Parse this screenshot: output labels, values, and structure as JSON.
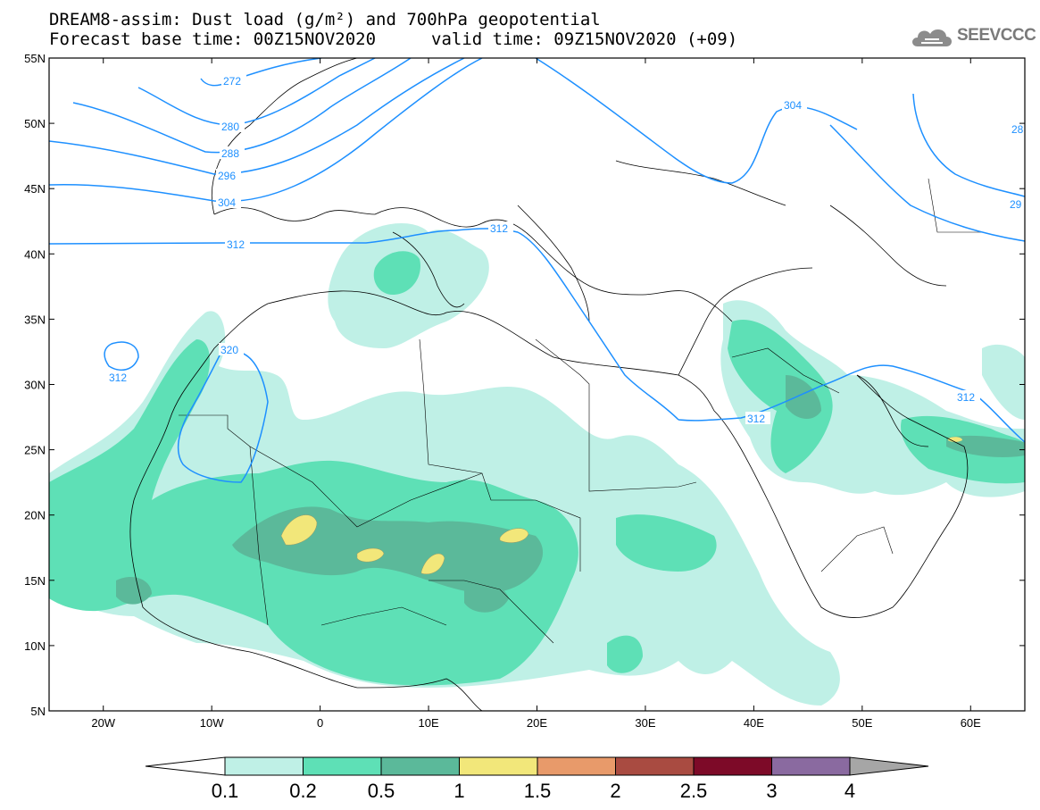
{
  "title": {
    "line1": "DREAM8-assim: Dust load (g/m²) and 700hPa geopotential",
    "line2": "Forecast base time: 00Z15NOV2020",
    "valid": "valid time: 09Z15NOV2020 (+09)"
  },
  "logo": {
    "text": "SEEVCCC",
    "icon": "cloud-icon"
  },
  "axes": {
    "lon_labels": [
      "20W",
      "10W",
      "0",
      "10E",
      "20E",
      "30E",
      "40E",
      "50E",
      "60E"
    ],
    "lat_labels": [
      "55N",
      "50N",
      "45N",
      "40N",
      "35N",
      "30N",
      "25N",
      "20N",
      "15N",
      "10N",
      "5N"
    ]
  },
  "contour_labels": {
    "c272": "272",
    "c280": "280",
    "c288": "288",
    "c296": "296",
    "c304w": "304",
    "c312w": "312",
    "c320": "320",
    "c312loop": "312",
    "c312med": "312",
    "c304e": "304",
    "c312red": "312",
    "c312gulf": "312",
    "c28e": "28",
    "c29e": "29"
  },
  "colors": {
    "contour": "#1e90ff",
    "land_border": "#000000"
  },
  "legend": {
    "levels": [
      "0.1",
      "0.2",
      "0.5",
      "1",
      "1.5",
      "2",
      "2.5",
      "3",
      "4"
    ],
    "colors": [
      "#ffffff",
      "#bff0e6",
      "#5ee0b6",
      "#5bb99a",
      "#f2e77a",
      "#e89a6a",
      "#a94b41",
      "#7d0a28",
      "#8a6aa0",
      "#a6a6a6"
    ]
  }
}
